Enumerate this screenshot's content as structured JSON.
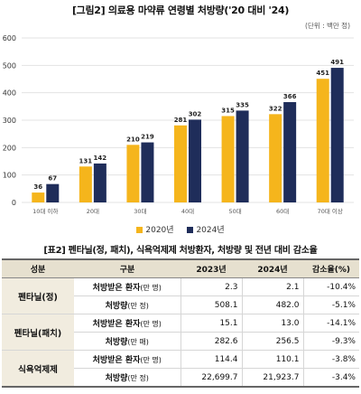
{
  "figure_title": "[그림2] 의료용 마약류 연령별 처방량('20 대비 '24)",
  "unit_note": "(단위 : 백만 정)",
  "colors": {
    "y2020": "#f5b51c",
    "y2024": "#1f2d5a",
    "grid": "#e3e3e3"
  },
  "chart_data": {
    "type": "bar",
    "categories": [
      "10대 이하",
      "20대",
      "30대",
      "40대",
      "50대",
      "60대",
      "70대 이상"
    ],
    "series": [
      {
        "name": "2020년",
        "values": [
          36,
          131,
          210,
          281,
          315,
          322,
          451
        ]
      },
      {
        "name": "2024년",
        "values": [
          67,
          142,
          219,
          302,
          335,
          366,
          491
        ]
      }
    ],
    "yticks": [
      0,
      100,
      200,
      300,
      400,
      500,
      600
    ],
    "ylim": [
      0,
      600
    ],
    "grid": true,
    "legend_position": "bottom"
  },
  "legend": {
    "s2020": "2020년",
    "s2024": "2024년"
  },
  "table": {
    "title": "[표2] 펜타닐(정, 패치), 식욕억제제 처방환자, 처방량 및 전년 대비 감소율",
    "headers": {
      "category": "성분",
      "item": "구분",
      "y2023": "2023년",
      "y2024": "2024년",
      "rate": "감소율(%)"
    },
    "rows": [
      {
        "drug": "펜타닐(정)",
        "item": "처방받은 환자",
        "unit": "(만 명)",
        "y2023": "2.3",
        "y2024": "2.1",
        "rate": "-10.4%"
      },
      {
        "drug": "",
        "item": "처방량",
        "unit": "(만 정)",
        "y2023": "508.1",
        "y2024": "482.0",
        "rate": "-5.1%"
      },
      {
        "drug": "펜타닐(패치)",
        "item": "처방받은 환자",
        "unit": "(만 명)",
        "y2023": "15.1",
        "y2024": "13.0",
        "rate": "-14.1%"
      },
      {
        "drug": "",
        "item": "처방량",
        "unit": "(만 매)",
        "y2023": "282.6",
        "y2024": "256.5",
        "rate": "-9.3%"
      },
      {
        "drug": "식욕억제제",
        "item": "처방받은 환자",
        "unit": "(만 명)",
        "y2023": "114.4",
        "y2024": "110.1",
        "rate": "-3.8%"
      },
      {
        "drug": "",
        "item": "처방량",
        "unit": "(만 정)",
        "y2023": "22,699.7",
        "y2024": "21,923.7",
        "rate": "-3.4%"
      }
    ]
  }
}
